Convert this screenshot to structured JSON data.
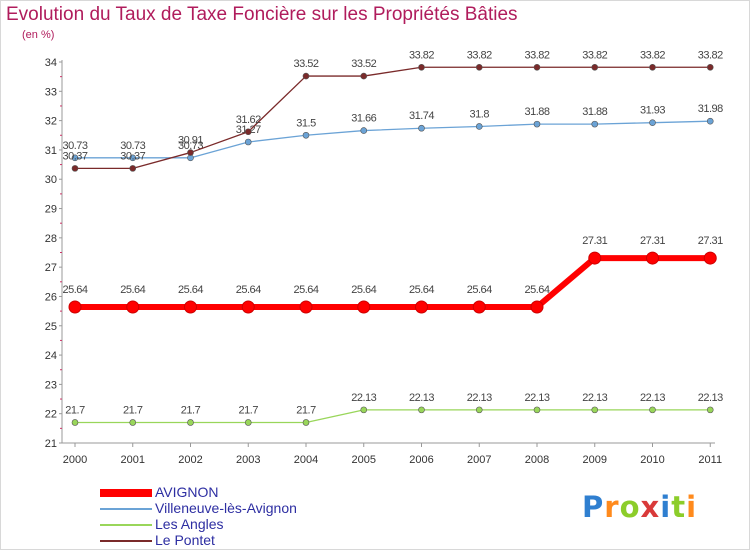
{
  "header": {
    "title": "Evolution du Taux de Taxe Foncière sur les Propriétés Bâties",
    "subtitle": "(en %)"
  },
  "chart_data": {
    "type": "line",
    "x": [
      "2000",
      "2001",
      "2002",
      "2003",
      "2004",
      "2005",
      "2006",
      "2007",
      "2008",
      "2009",
      "2010",
      "2011"
    ],
    "ylim": [
      21,
      34
    ],
    "yticks": [
      "21",
      "22",
      "23",
      "24",
      "25",
      "26",
      "27",
      "28",
      "29",
      "30",
      "31",
      "32",
      "33",
      "34"
    ],
    "grid": false,
    "series": [
      {
        "name": "AVIGNON",
        "color": "#ff0000",
        "values": [
          25.64,
          25.64,
          25.64,
          25.64,
          25.64,
          25.64,
          25.64,
          25.64,
          25.64,
          27.31,
          27.31,
          27.31
        ],
        "labels": [
          "25.64",
          "25.64",
          "25.64",
          "25.64",
          "25.64",
          "25.64",
          "25.64",
          "25.64",
          "25.64",
          "27.31",
          "27.31",
          "27.31"
        ]
      },
      {
        "name": "Villeneuve-lès-Avignon",
        "color": "#6ba3d6",
        "values": [
          30.73,
          30.73,
          30.73,
          31.27,
          31.5,
          31.66,
          31.74,
          31.8,
          31.88,
          31.88,
          31.93,
          31.98
        ],
        "labels": [
          "30.73",
          "30.73",
          "30.73",
          "31.27",
          "31.5",
          "31.66",
          "31.74",
          "31.8",
          "31.88",
          "31.88",
          "31.93",
          "31.98"
        ]
      },
      {
        "name": "Les Angles",
        "color": "#99d65a",
        "values": [
          21.7,
          21.7,
          21.7,
          21.7,
          21.7,
          22.13,
          22.13,
          22.13,
          22.13,
          22.13,
          22.13,
          22.13
        ],
        "labels": [
          "21.7",
          "21.7",
          "21.7",
          "21.7",
          "21.7",
          "22.13",
          "22.13",
          "22.13",
          "22.13",
          "22.13",
          "22.13",
          "22.13"
        ]
      },
      {
        "name": "Le Pontet",
        "color": "#7a2a2a",
        "values": [
          30.37,
          30.37,
          30.91,
          31.62,
          33.52,
          33.52,
          33.82,
          33.82,
          33.82,
          33.82,
          33.82,
          33.82
        ],
        "labels": [
          "30.37",
          "30.37",
          "30.91",
          "31.62",
          "33.52",
          "33.52",
          "33.82",
          "33.82",
          "33.82",
          "33.82",
          "33.82",
          "33.82"
        ]
      }
    ]
  },
  "logo": {
    "letters": [
      "P",
      "r",
      "o",
      "x",
      "i",
      "t",
      "i"
    ],
    "colors": [
      "#2f7fd0",
      "#ff8a1c",
      "#8ccd2a",
      "#d93a3a",
      "#2f7fd0",
      "#8ccd2a",
      "#ff8a1c"
    ]
  }
}
